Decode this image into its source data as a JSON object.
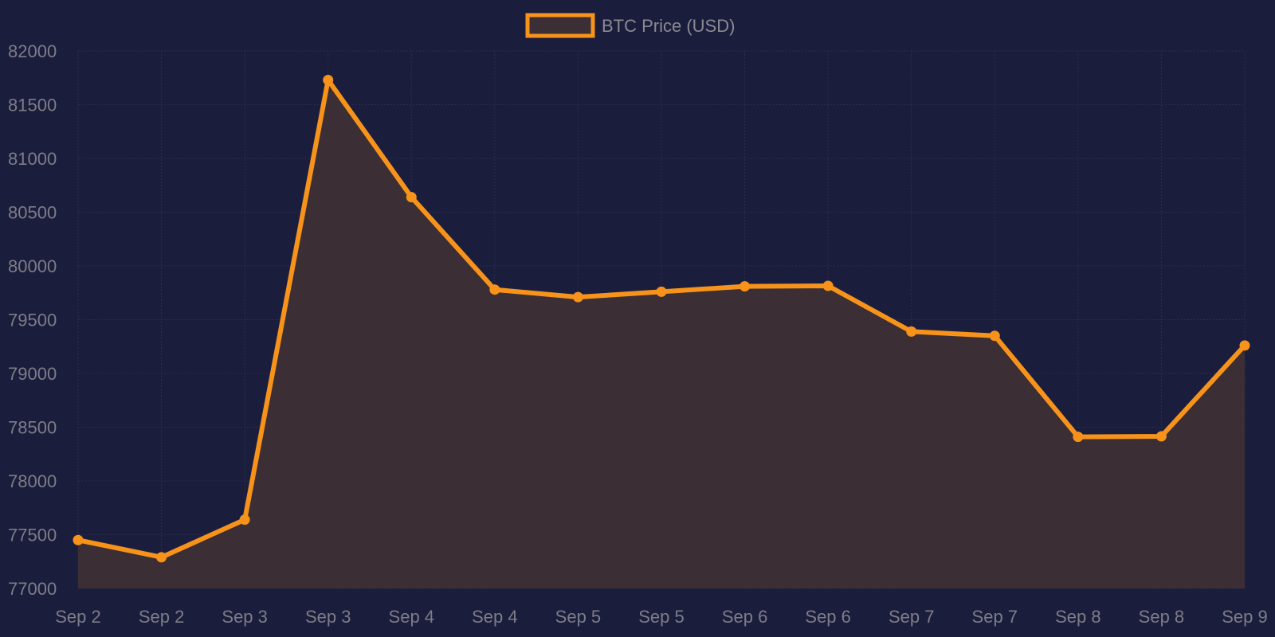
{
  "chart_data": {
    "type": "area",
    "title": "",
    "xlabel": "",
    "ylabel": "",
    "categories": [
      "Sep 2",
      "Sep 2",
      "Sep 3",
      "Sep 3",
      "Sep 4",
      "Sep 4",
      "Sep 5",
      "Sep 5",
      "Sep 6",
      "Sep 6",
      "Sep 7",
      "Sep 7",
      "Sep 8",
      "Sep 8",
      "Sep 9"
    ],
    "series": [
      {
        "name": "BTC Price (USD)",
        "values": [
          77450,
          77290,
          77640,
          81730,
          80640,
          79780,
          79710,
          79760,
          79810,
          79815,
          79390,
          79350,
          78410,
          78415,
          79260
        ]
      }
    ],
    "ylim": [
      77000,
      82000
    ],
    "yticks": [
      77000,
      77500,
      78000,
      78500,
      79000,
      79500,
      80000,
      80500,
      81000,
      81500,
      82000
    ],
    "grid": true,
    "legend_position": "top-center",
    "colors": {
      "background": "#1b1d3d",
      "line": "#f7931a",
      "fill": "#3b2e35",
      "grid": "#2b2d4c",
      "tick_text": "#7d7d87",
      "legend_text": "#8a8a92"
    }
  }
}
